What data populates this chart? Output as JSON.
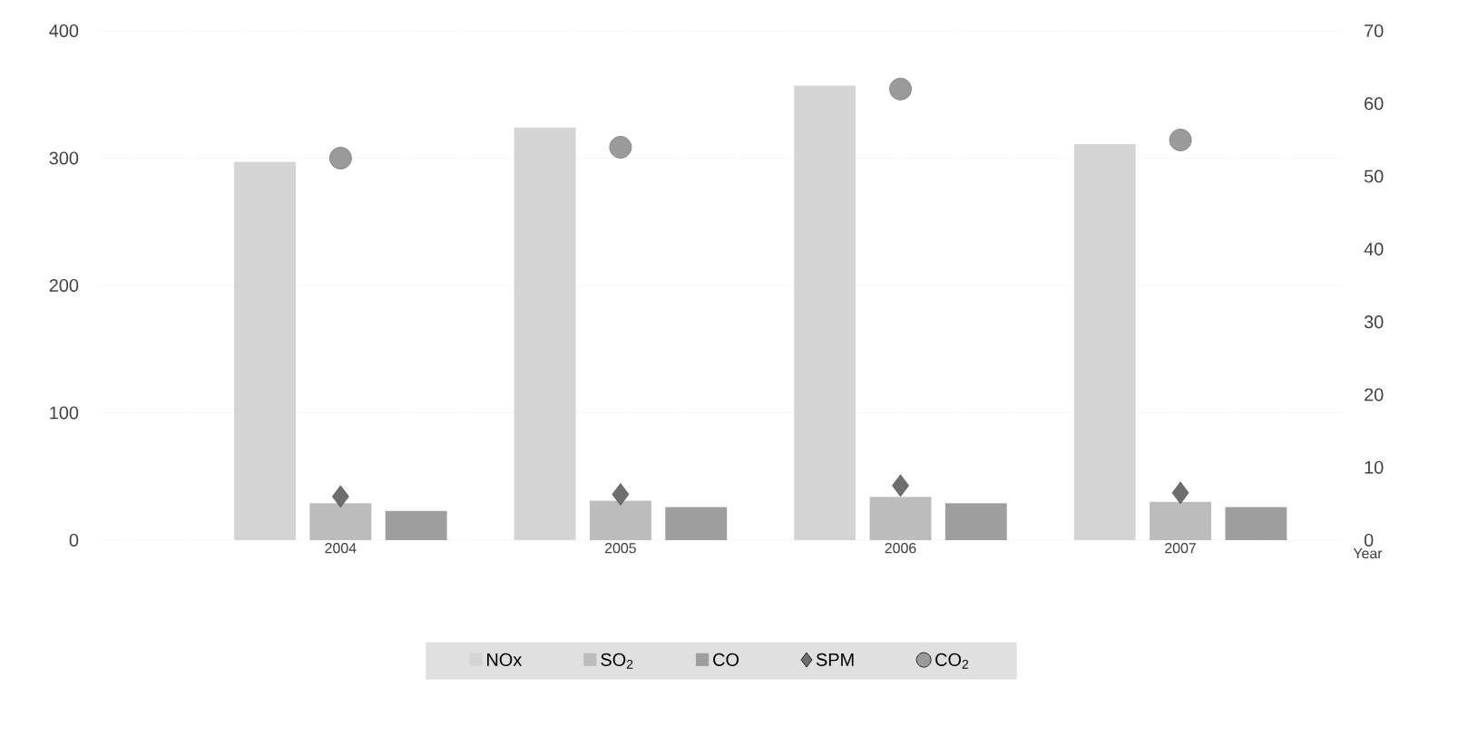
{
  "chart_data": {
    "type": "bar",
    "xlabel": "Year",
    "categories": [
      "2004",
      "2005",
      "2006",
      "2007"
    ],
    "series": [
      {
        "name": "NOx",
        "color": "#d4d4d4",
        "values": [
          297,
          324,
          357,
          311
        ]
      },
      {
        "name": "SO$_{2}$",
        "color": "#bcbcbc",
        "values": [
          29,
          31,
          34,
          30
        ]
      },
      {
        "name": "CO",
        "color": "#9e9e9e",
        "values": [
          23,
          26,
          29,
          26
        ]
      },
      {
        "name": "SPM",
        "type": "scatter",
        "axis": "y2",
        "marker": "diamond",
        "color": "#6e6e6e",
        "values": [
          6,
          6.3,
          7.5,
          6.5
        ]
      },
      {
        "name": "CO$_{2}$",
        "type": "scatter",
        "axis": "y2",
        "marker": "circle",
        "color": "#9a9a9a",
        "values": [
          52.5,
          54,
          62,
          55
        ]
      }
    ],
    "ylim": [
      0,
      400
    ],
    "yticks": [
      0,
      100,
      200,
      300,
      400
    ],
    "y2lim": [
      0,
      70
    ],
    "y2ticks": [
      0,
      10,
      20,
      30,
      40,
      50,
      60,
      70
    ],
    "grid": "y",
    "legend": "bottom"
  }
}
